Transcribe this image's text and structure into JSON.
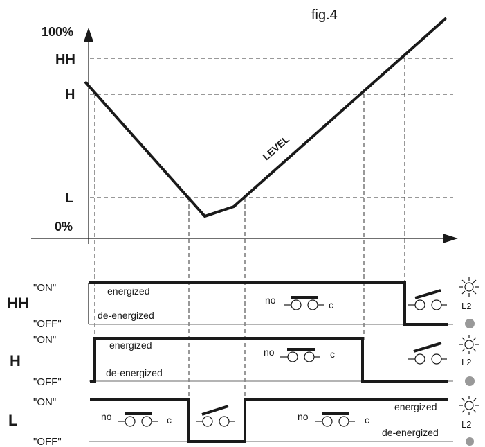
{
  "figure_label": "fig.4",
  "axis": {
    "top": "100%",
    "hh": "HH",
    "h": "H",
    "l": "L",
    "bottom": "0%"
  },
  "level_label": "LEVEL",
  "rows": {
    "hh": {
      "name": "HH",
      "on": "\"ON\"",
      "off": "\"OFF\"",
      "energized": "energized",
      "de_energized": "de-energized",
      "no": "no",
      "c": "c",
      "lamp": "L2"
    },
    "h": {
      "name": "H",
      "on": "\"ON\"",
      "off": "\"OFF\"",
      "energized": "energized",
      "de_energized": "de-energized",
      "no": "no",
      "c": "c",
      "lamp": "L2"
    },
    "l": {
      "name": "L",
      "on": "\"ON\"",
      "off": "\"OFF\"",
      "energized": "energized",
      "de_energized": "de-energized",
      "no1": "no",
      "c1": "c",
      "no2": "no",
      "c2": "c",
      "lamp": "L2"
    }
  },
  "colors": {
    "ink": "#1a1a1a",
    "lamp_off": "#999999"
  }
}
